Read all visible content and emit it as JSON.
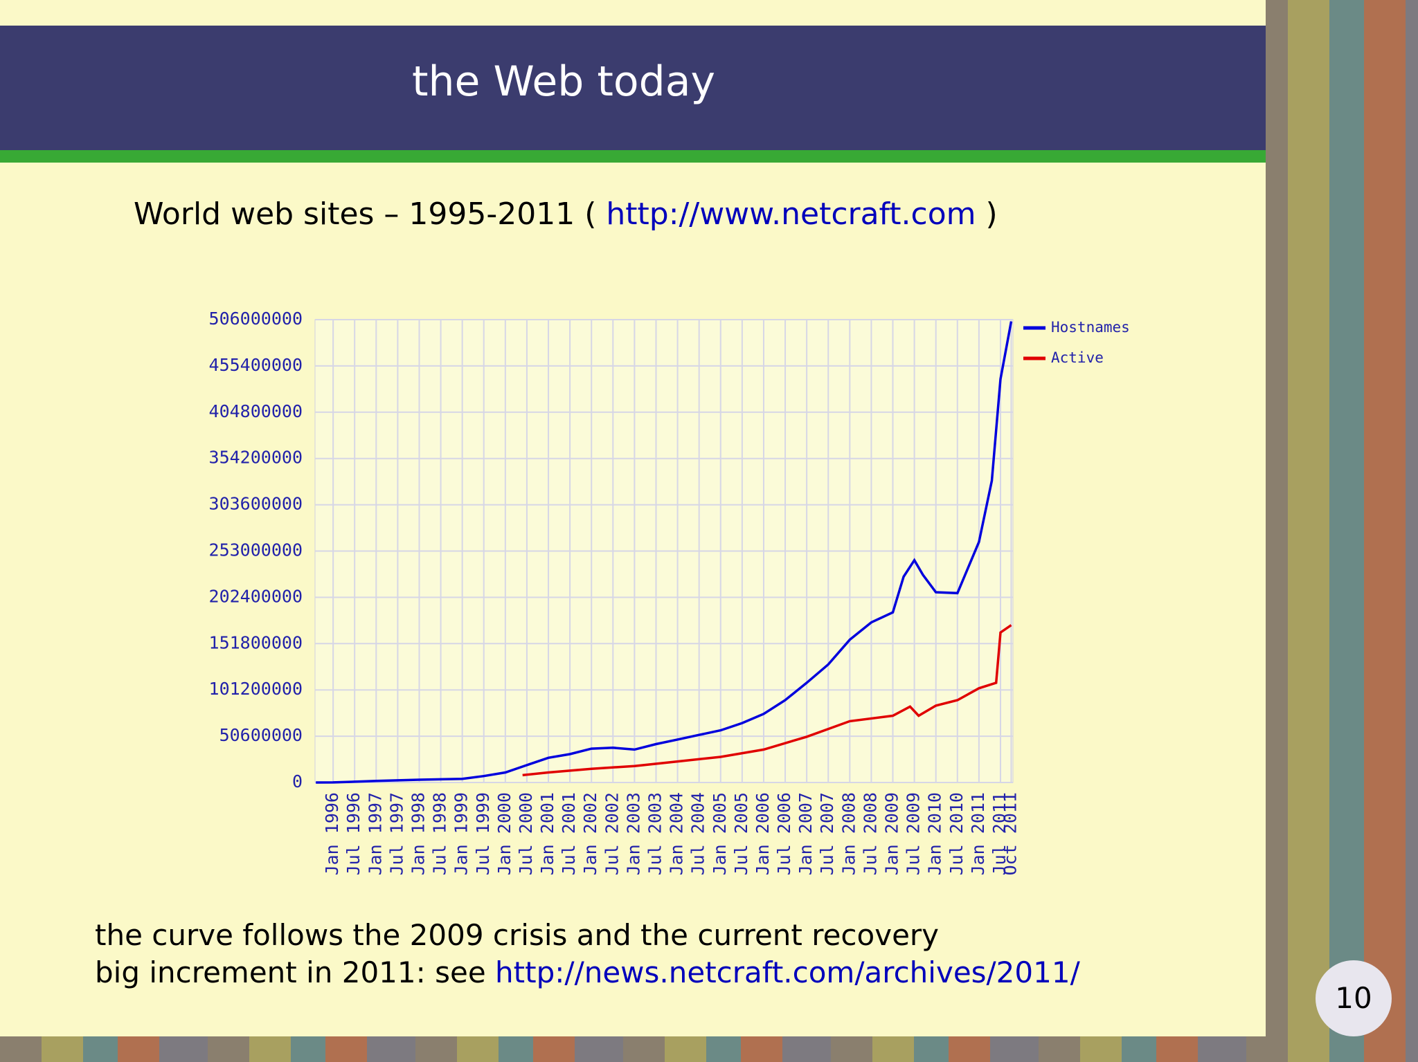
{
  "slide": {
    "title": "the Web today",
    "subtitle": {
      "text": "World web sites – 1995-2011 (",
      "link": "http://www.netcraft.com",
      "close": ")"
    },
    "notes": [
      {
        "text": "the curve follows the 2009 crisis and the current recovery"
      },
      {
        "text": "big increment in 2011: see",
        "link": "http://news.netcraft.com/archives/2011/"
      }
    ],
    "page_number": "10"
  },
  "chart_data": {
    "type": "line",
    "xlim": [
      1995.58,
      2011.79
    ],
    "xticks": [
      {
        "value": 1996.0,
        "label": "Jan 1996"
      },
      {
        "value": 1996.5,
        "label": "Jul 1996"
      },
      {
        "value": 1997.0,
        "label": "Jan 1997"
      },
      {
        "value": 1997.5,
        "label": "Jul 1997"
      },
      {
        "value": 1998.0,
        "label": "Jan 1998"
      },
      {
        "value": 1998.5,
        "label": "Jul 1998"
      },
      {
        "value": 1999.0,
        "label": "Jan 1999"
      },
      {
        "value": 1999.5,
        "label": "Jul 1999"
      },
      {
        "value": 2000.0,
        "label": "Jan 2000"
      },
      {
        "value": 2000.5,
        "label": "Jul 2000"
      },
      {
        "value": 2001.0,
        "label": "Jan 2001"
      },
      {
        "value": 2001.5,
        "label": "Jul 2001"
      },
      {
        "value": 2002.0,
        "label": "Jan 2002"
      },
      {
        "value": 2002.5,
        "label": "Jul 2002"
      },
      {
        "value": 2003.0,
        "label": "Jan 2003"
      },
      {
        "value": 2003.5,
        "label": "Jul 2003"
      },
      {
        "value": 2004.0,
        "label": "Jan 2004"
      },
      {
        "value": 2004.5,
        "label": "Jul 2004"
      },
      {
        "value": 2005.0,
        "label": "Jan 2005"
      },
      {
        "value": 2005.5,
        "label": "Jul 2005"
      },
      {
        "value": 2006.0,
        "label": "Jan 2006"
      },
      {
        "value": 2006.5,
        "label": "Jul 2006"
      },
      {
        "value": 2007.0,
        "label": "Jan 2007"
      },
      {
        "value": 2007.5,
        "label": "Jul 2007"
      },
      {
        "value": 2008.0,
        "label": "Jan 2008"
      },
      {
        "value": 2008.5,
        "label": "Jul 2008"
      },
      {
        "value": 2009.0,
        "label": "Jan 2009"
      },
      {
        "value": 2009.5,
        "label": "Jul 2009"
      },
      {
        "value": 2010.0,
        "label": "Jan 2010"
      },
      {
        "value": 2010.5,
        "label": "Jul 2010"
      },
      {
        "value": 2011.0,
        "label": "Jan 2011"
      },
      {
        "value": 2011.5,
        "label": "Jul 2011"
      },
      {
        "value": 2011.75,
        "label": "Oct 2011"
      }
    ],
    "ylim": [
      0,
      506000000
    ],
    "yticks": [
      0,
      50600000,
      101200000,
      151800000,
      202400000,
      253000000,
      303600000,
      354200000,
      404800000,
      455400000,
      506000000
    ],
    "grid": true,
    "legend": "outside-right",
    "series": [
      {
        "name": "Hostnames",
        "color": "#0000dd",
        "x": [
          1995.6,
          1996.0,
          1997.0,
          1998.0,
          1999.0,
          1999.5,
          2000.0,
          2000.5,
          2001.0,
          2001.5,
          2002.0,
          2002.5,
          2003.0,
          2003.5,
          2004.0,
          2004.5,
          2005.0,
          2005.5,
          2006.0,
          2006.5,
          2007.0,
          2007.5,
          2008.0,
          2008.5,
          2009.0,
          2009.25,
          2009.5,
          2009.7,
          2010.0,
          2010.5,
          2011.0,
          2011.3,
          2011.5,
          2011.75
        ],
        "values": [
          20000,
          100000,
          1700000,
          3000000,
          4000000,
          7000000,
          11000000,
          19000000,
          27000000,
          31000000,
          37000000,
          38000000,
          36000000,
          42000000,
          47000000,
          52000000,
          57000000,
          65000000,
          75000000,
          90000000,
          109000000,
          129000000,
          156000000,
          175000000,
          186000000,
          225000000,
          243000000,
          227000000,
          208000000,
          207000000,
          263000000,
          330000000,
          441000000,
          504000000
        ]
      },
      {
        "name": "Active",
        "color": "#e00000",
        "x": [
          2000.4,
          2001.0,
          2002.0,
          2003.0,
          2004.0,
          2005.0,
          2006.0,
          2007.0,
          2008.0,
          2009.0,
          2009.4,
          2009.6,
          2010.0,
          2010.5,
          2011.0,
          2011.4,
          2011.5,
          2011.75
        ],
        "values": [
          8000000,
          11000000,
          15000000,
          18000000,
          23000000,
          28000000,
          36000000,
          50000000,
          67000000,
          73000000,
          83000000,
          73000000,
          84000000,
          90000000,
          103000000,
          109000000,
          164000000,
          172000000
        ]
      }
    ]
  }
}
